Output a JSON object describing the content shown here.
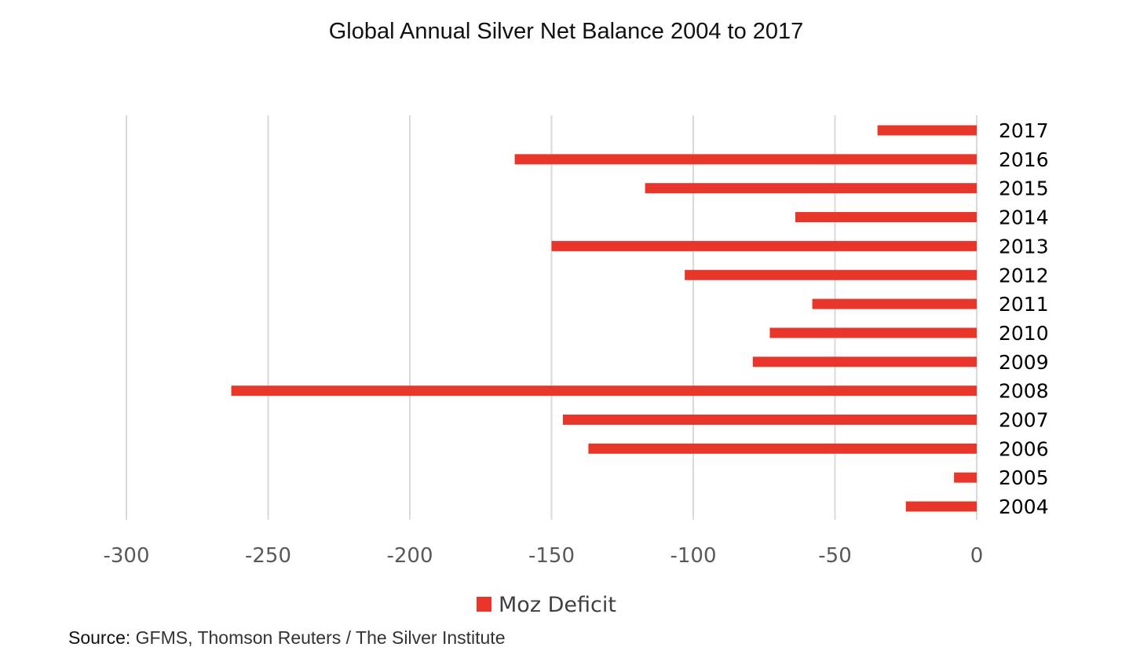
{
  "chart_data": {
    "type": "bar",
    "orientation": "horizontal",
    "title": "Global Annual Silver Net Balance 2004 to 2017",
    "categories": [
      "2017",
      "2016",
      "2015",
      "2014",
      "2013",
      "2012",
      "2011",
      "2010",
      "2009",
      "2008",
      "2007",
      "2006",
      "2005",
      "2004"
    ],
    "series": [
      {
        "name": "Moz Deficit",
        "color": "#e8372a",
        "values": [
          -35,
          -163,
          -117,
          -64,
          -150,
          -103,
          -58,
          -73,
          -79,
          -263,
          -146,
          -137,
          -8,
          -25
        ]
      }
    ],
    "xlim": [
      -300,
      0
    ],
    "xticks": [
      -300,
      -250,
      -200,
      -150,
      -100,
      -50,
      0
    ],
    "xtick_labels": [
      "-300",
      "-250",
      "-200",
      "-150",
      "-100",
      "-50",
      "0"
    ],
    "grid": "vertical",
    "legend_position": "bottom",
    "category_axis_side": "right"
  },
  "source": {
    "label": "Source:",
    "text": "GFMS, Thomson Reuters / The Silver Institute"
  }
}
